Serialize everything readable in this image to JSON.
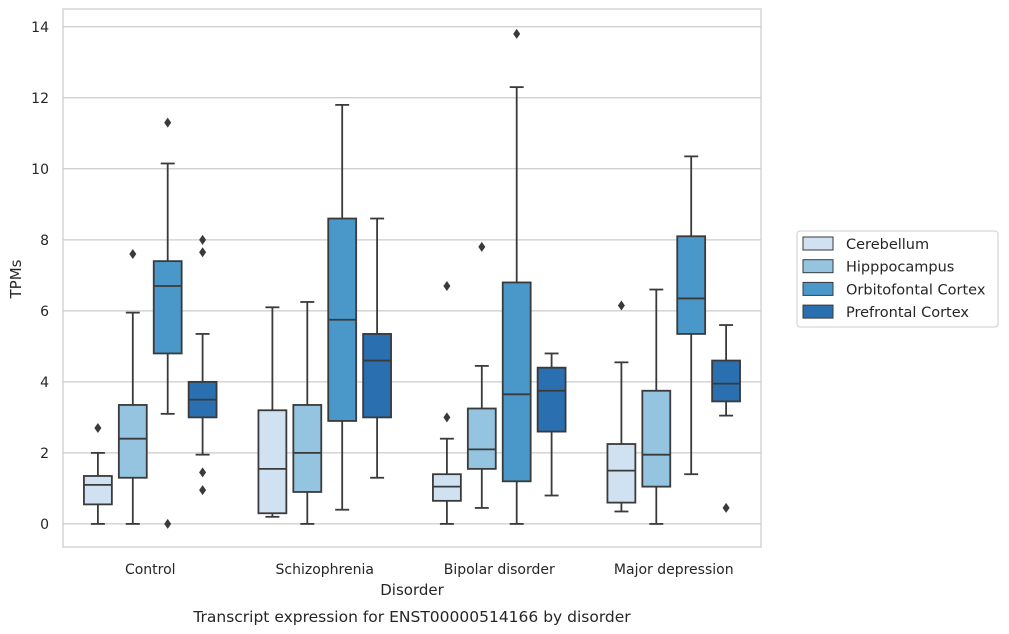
{
  "chart_data": {
    "type": "box",
    "xlabel": "Disorder",
    "ylabel": "TPMs",
    "caption": "Transcript expression for ENST00000514166 by disorder",
    "ylim": [
      -0.65,
      14.5
    ],
    "yticks": [
      0,
      2,
      4,
      6,
      8,
      10,
      12,
      14
    ],
    "grid": "horizontal",
    "legend_position": "right",
    "categories": [
      "Control",
      "Schizophrenia",
      "Bipolar disorder",
      "Major depression"
    ],
    "series": [
      {
        "name": "Cerebellum",
        "color": "#d0e1f2",
        "boxes": [
          {
            "whislo": 0.0,
            "q1": 0.55,
            "med": 1.1,
            "q3": 1.35,
            "whishi": 2.0,
            "fliers": [
              2.7
            ]
          },
          {
            "whislo": 0.2,
            "q1": 0.3,
            "med": 1.55,
            "q3": 3.2,
            "whishi": 6.1,
            "fliers": []
          },
          {
            "whislo": 0.0,
            "q1": 0.65,
            "med": 1.05,
            "q3": 1.4,
            "whishi": 2.4,
            "fliers": [
              3.0,
              6.7
            ]
          },
          {
            "whislo": 0.35,
            "q1": 0.6,
            "med": 1.5,
            "q3": 2.25,
            "whishi": 4.55,
            "fliers": [
              6.15
            ]
          }
        ]
      },
      {
        "name": "Hipppocampus",
        "color": "#94c4df",
        "boxes": [
          {
            "whislo": 0.0,
            "q1": 1.3,
            "med": 2.4,
            "q3": 3.35,
            "whishi": 5.95,
            "fliers": [
              7.6
            ]
          },
          {
            "whislo": 0.0,
            "q1": 0.9,
            "med": 2.0,
            "q3": 3.35,
            "whishi": 6.25,
            "fliers": []
          },
          {
            "whislo": 0.45,
            "q1": 1.55,
            "med": 2.1,
            "q3": 3.25,
            "whishi": 4.45,
            "fliers": [
              7.8
            ]
          },
          {
            "whislo": 0.0,
            "q1": 1.05,
            "med": 1.95,
            "q3": 3.75,
            "whishi": 6.6,
            "fliers": []
          }
        ]
      },
      {
        "name": "Orbitofontal Cortex",
        "color": "#4a98c9",
        "boxes": [
          {
            "whislo": 3.1,
            "q1": 4.8,
            "med": 6.7,
            "q3": 7.4,
            "whishi": 10.15,
            "fliers": [
              11.3,
              0.0
            ]
          },
          {
            "whislo": 0.4,
            "q1": 2.9,
            "med": 5.75,
            "q3": 8.6,
            "whishi": 11.8,
            "fliers": []
          },
          {
            "whislo": 0.0,
            "q1": 1.2,
            "med": 3.65,
            "q3": 6.8,
            "whishi": 12.3,
            "fliers": [
              13.8
            ]
          },
          {
            "whislo": 1.4,
            "q1": 5.35,
            "med": 6.35,
            "q3": 8.1,
            "whishi": 10.35,
            "fliers": []
          }
        ]
      },
      {
        "name": "Prefrontal Cortex",
        "color": "#2a6fb0",
        "boxes": [
          {
            "whislo": 1.95,
            "q1": 3.0,
            "med": 3.5,
            "q3": 4.0,
            "whishi": 5.35,
            "fliers": [
              8.0,
              7.65,
              1.45,
              0.95
            ]
          },
          {
            "whislo": 1.3,
            "q1": 3.0,
            "med": 4.6,
            "q3": 5.35,
            "whishi": 8.6,
            "fliers": []
          },
          {
            "whislo": 0.8,
            "q1": 2.6,
            "med": 3.75,
            "q3": 4.4,
            "whishi": 4.8,
            "fliers": []
          },
          {
            "whislo": 3.05,
            "q1": 3.45,
            "med": 3.95,
            "q3": 4.6,
            "whishi": 5.6,
            "fliers": [
              0.45
            ]
          }
        ]
      }
    ]
  }
}
